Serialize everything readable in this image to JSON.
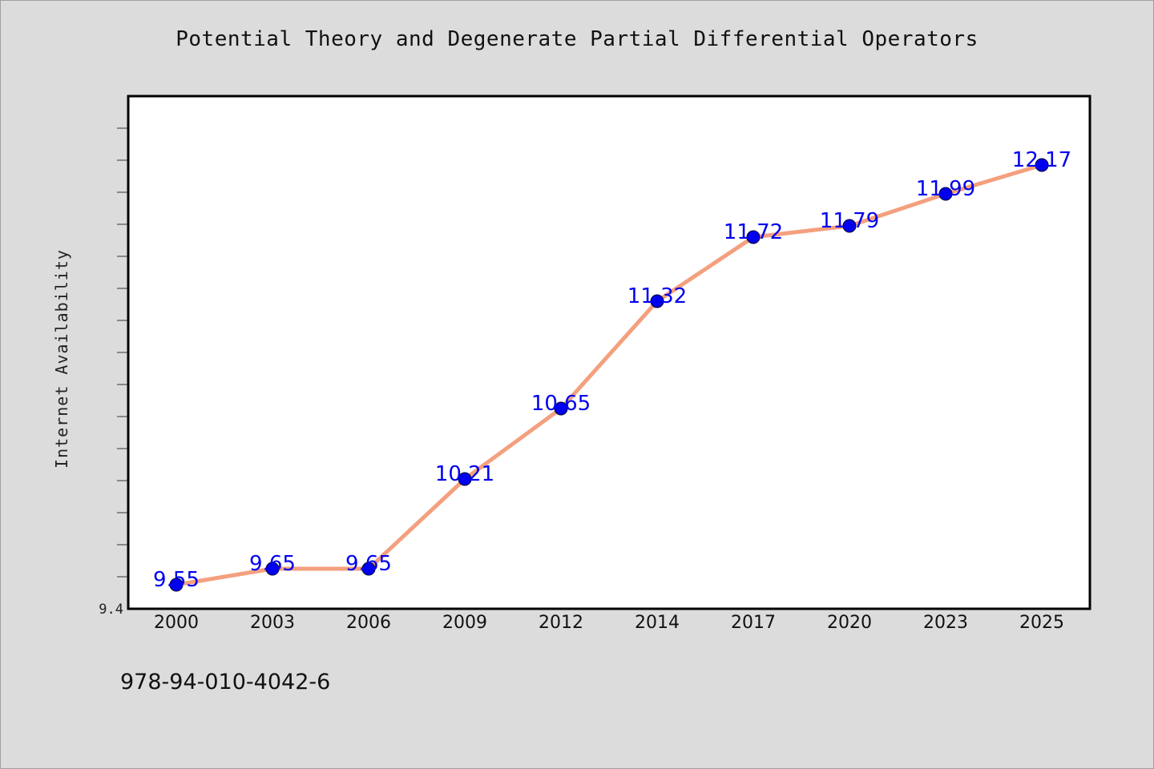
{
  "title": "Potential Theory and Degenerate Partial Differential Operators",
  "isbn": "978-94-010-4042-6",
  "colors": {
    "background": "#dcdcdc",
    "plot_background": "#ffffff",
    "line": "#f4a07e",
    "marker": "#0000ee",
    "data_label": "#0000ee"
  },
  "chart_data": {
    "type": "line",
    "title": "Potential Theory and Degenerate Partial Differential Operators",
    "xlabel": "",
    "ylabel": "Internet Availability",
    "categories": [
      "2000",
      "2003",
      "2006",
      "2009",
      "2012",
      "2014",
      "2017",
      "2020",
      "2023",
      "2025"
    ],
    "series": [
      {
        "values": [
          9.55,
          9.65,
          9.65,
          10.21,
          10.65,
          11.32,
          11.72,
          11.79,
          11.99,
          12.17
        ]
      }
    ],
    "data_labels": [
      "9.55",
      "9.65",
      "9.65",
      "10.21",
      "10.65",
      "11.32",
      "11.72",
      "11.79",
      "11.99",
      "12.17"
    ],
    "ylim": [
      9.4,
      12.6
    ],
    "yticks_labeled": [
      "9.4"
    ],
    "ytick_step": 0.2,
    "grid": false,
    "legend": "none"
  }
}
